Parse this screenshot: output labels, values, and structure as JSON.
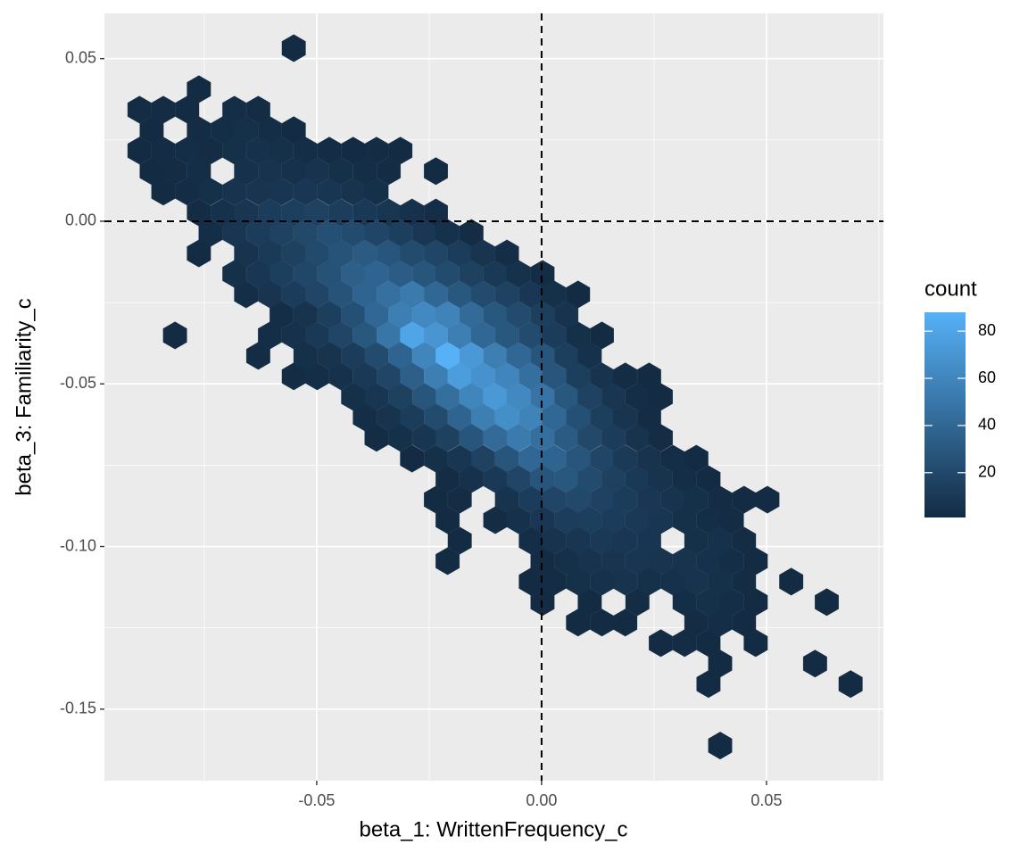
{
  "chart_data": {
    "type": "hexbin",
    "x_label": "beta_1: WrittenFrequency_c",
    "y_label": "beta_3: Familiarity_c",
    "xlim": [
      -0.0972,
      0.076
    ],
    "ylim": [
      -0.172,
      0.0639
    ],
    "xticks": [
      {
        "value": -0.05,
        "label": "-0.05"
      },
      {
        "value": 0,
        "label": "0.00"
      },
      {
        "value": 0.05,
        "label": "0.05"
      }
    ],
    "yticks": [
      {
        "value": -0.15,
        "label": "-0.15"
      },
      {
        "value": -0.1,
        "label": "-0.10"
      },
      {
        "value": -0.05,
        "label": "-0.05"
      },
      {
        "value": 0,
        "label": "0.00"
      },
      {
        "value": 0.05,
        "label": "0.05"
      }
    ],
    "grid": true,
    "vlines": [
      0
    ],
    "hlines": [
      0
    ],
    "colorbar": {
      "title": "count",
      "lim": [
        1,
        88
      ],
      "ticks": [
        20,
        40,
        60,
        80
      ],
      "low": "#132B43",
      "high": "#56B1F7"
    },
    "x": [
      -0.0551,
      -0.0762,
      -0.0894,
      -0.0841,
      -0.0788,
      -0.0683,
      -0.063,
      -0.0867,
      -0.0762,
      -0.0709,
      -0.0657,
      -0.0604,
      -0.0551,
      -0.0894,
      -0.0841,
      -0.0788,
      -0.0736,
      -0.0683,
      -0.063,
      -0.0578,
      -0.0525,
      -0.0472,
      -0.0419,
      -0.0367,
      -0.0314,
      -0.0867,
      -0.0815,
      -0.0762,
      -0.0657,
      -0.0604,
      -0.0551,
      -0.0499,
      -0.0446,
      -0.0393,
      -0.034,
      -0.0235,
      -0.0841,
      -0.0788,
      -0.0736,
      -0.0683,
      -0.063,
      -0.0578,
      -0.0525,
      -0.0472,
      -0.0419,
      -0.0367,
      -0.0762,
      -0.0709,
      -0.0657,
      -0.0604,
      -0.0551,
      -0.0499,
      -0.0446,
      -0.0393,
      -0.034,
      -0.0288,
      -0.0235,
      -0.0736,
      -0.0683,
      -0.063,
      -0.0578,
      -0.0525,
      -0.0472,
      -0.0419,
      -0.0367,
      -0.0314,
      -0.0261,
      -0.0209,
      -0.0156,
      -0.0762,
      -0.0657,
      -0.0604,
      -0.0551,
      -0.0499,
      -0.0446,
      -0.0393,
      -0.034,
      -0.0288,
      -0.0235,
      -0.0182,
      -0.013,
      -0.0077,
      -0.0683,
      -0.063,
      -0.0578,
      -0.0525,
      -0.0472,
      -0.0419,
      -0.0367,
      -0.0314,
      -0.0261,
      -0.0209,
      -0.0156,
      -0.0103,
      -0.0051,
      0.0002,
      -0.0657,
      -0.0604,
      -0.0551,
      -0.0499,
      -0.0446,
      -0.0393,
      -0.034,
      -0.0288,
      -0.0235,
      -0.0182,
      -0.013,
      -0.0077,
      -0.0024,
      0.0028,
      0.0081,
      -0.0578,
      -0.0525,
      -0.0472,
      -0.0419,
      -0.0367,
      -0.0314,
      -0.0261,
      -0.0209,
      -0.0156,
      -0.0103,
      -0.0051,
      0.0002,
      0.0055,
      -0.0815,
      -0.0604,
      -0.0551,
      -0.0499,
      -0.0446,
      -0.0393,
      -0.034,
      -0.0288,
      -0.0235,
      -0.0182,
      -0.013,
      -0.0077,
      -0.0024,
      0.0028,
      0.0081,
      0.0134,
      -0.063,
      -0.0525,
      -0.0472,
      -0.0419,
      -0.0367,
      -0.0314,
      -0.0261,
      -0.0209,
      -0.0156,
      -0.0103,
      -0.0051,
      0.0002,
      0.0055,
      0.0107,
      -0.0551,
      -0.0499,
      -0.0446,
      -0.0393,
      -0.034,
      -0.0288,
      -0.0235,
      -0.0182,
      -0.013,
      -0.0077,
      -0.0024,
      0.0028,
      0.0081,
      0.0134,
      0.0186,
      0.0239,
      -0.0419,
      -0.0367,
      -0.0314,
      -0.0261,
      -0.0209,
      -0.0156,
      -0.0103,
      -0.0051,
      0.0002,
      0.0055,
      0.0107,
      0.016,
      0.0213,
      0.0265,
      -0.0393,
      -0.034,
      -0.0288,
      -0.0235,
      -0.0182,
      -0.013,
      -0.0077,
      -0.0024,
      0.0028,
      0.0081,
      0.0134,
      0.0186,
      0.0239,
      -0.0367,
      -0.0314,
      -0.0261,
      -0.0209,
      -0.0156,
      -0.0103,
      -0.0051,
      0.0002,
      0.0055,
      0.0107,
      0.016,
      0.0213,
      0.0265,
      -0.0288,
      -0.0235,
      -0.0182,
      -0.013,
      -0.0077,
      -0.0024,
      0.0028,
      0.0081,
      0.0134,
      0.0186,
      0.0239,
      0.0292,
      0.0344,
      -0.0209,
      -0.0156,
      -0.0103,
      -0.0051,
      0.0002,
      0.0055,
      0.0107,
      0.016,
      0.0213,
      0.0265,
      0.0318,
      0.0371,
      -0.0235,
      -0.0182,
      -0.0077,
      -0.0024,
      0.0028,
      0.0081,
      0.0134,
      0.0186,
      0.0239,
      0.0292,
      0.0344,
      0.0397,
      0.045,
      0.0502,
      -0.0209,
      -0.0103,
      -0.0051,
      0.0002,
      0.0055,
      0.0107,
      0.016,
      0.0213,
      0.0265,
      0.0318,
      0.0371,
      0.0423,
      -0.0182,
      -0.0024,
      0.0028,
      0.0081,
      0.0134,
      0.0186,
      0.0239,
      0.0344,
      0.0397,
      0.045,
      -0.0209,
      0.0002,
      0.0055,
      0.0107,
      0.016,
      0.0213,
      0.0265,
      0.0318,
      0.0371,
      0.0423,
      0.0476,
      -0.0024,
      0.0028,
      0.0081,
      0.0134,
      0.0186,
      0.0239,
      0.0292,
      0.0344,
      0.0397,
      0.045,
      0.0555,
      0.0002,
      0.0107,
      0.0213,
      0.0318,
      0.0371,
      0.0423,
      0.0476,
      0.0634,
      0.0081,
      0.0134,
      0.0186,
      0.0344,
      0.0397,
      0.045,
      0.0265,
      0.0318,
      0.0371,
      0.0476,
      0.0397,
      0.0608,
      0.0371,
      0.0687,
      0.0397
    ],
    "y": [
      0.0532,
      0.0406,
      0.0343,
      0.0343,
      0.0343,
      0.0343,
      0.0343,
      0.028,
      0.028,
      0.028,
      0.028,
      0.028,
      0.028,
      0.0217,
      0.0217,
      0.0217,
      0.0217,
      0.0217,
      0.0217,
      0.0217,
      0.0217,
      0.0217,
      0.0217,
      0.0217,
      0.0217,
      0.0154,
      0.0154,
      0.0154,
      0.0154,
      0.0154,
      0.0154,
      0.0154,
      0.0154,
      0.0154,
      0.0154,
      0.0154,
      0.0091,
      0.0091,
      0.0091,
      0.0091,
      0.0091,
      0.0091,
      0.0091,
      0.0091,
      0.0091,
      0.0091,
      0.0027,
      0.0027,
      0.0027,
      0.0027,
      0.0027,
      0.0027,
      0.0027,
      0.0027,
      0.0027,
      0.0027,
      0.0027,
      -0.0036,
      -0.0036,
      -0.0036,
      -0.0036,
      -0.0036,
      -0.0036,
      -0.0036,
      -0.0036,
      -0.0036,
      -0.0036,
      -0.0036,
      -0.0036,
      -0.0099,
      -0.0099,
      -0.0099,
      -0.0099,
      -0.0099,
      -0.0099,
      -0.0099,
      -0.0099,
      -0.0099,
      -0.0099,
      -0.0099,
      -0.0099,
      -0.0099,
      -0.0162,
      -0.0162,
      -0.0162,
      -0.0162,
      -0.0162,
      -0.0162,
      -0.0162,
      -0.0162,
      -0.0162,
      -0.0162,
      -0.0162,
      -0.0162,
      -0.0162,
      -0.0162,
      -0.0225,
      -0.0225,
      -0.0225,
      -0.0225,
      -0.0225,
      -0.0225,
      -0.0225,
      -0.0225,
      -0.0225,
      -0.0225,
      -0.0225,
      -0.0225,
      -0.0225,
      -0.0225,
      -0.0225,
      -0.0288,
      -0.0288,
      -0.0288,
      -0.0288,
      -0.0288,
      -0.0288,
      -0.0288,
      -0.0288,
      -0.0288,
      -0.0288,
      -0.0288,
      -0.0288,
      -0.0288,
      -0.0351,
      -0.0351,
      -0.0351,
      -0.0351,
      -0.0351,
      -0.0351,
      -0.0351,
      -0.0351,
      -0.0351,
      -0.0351,
      -0.0351,
      -0.0351,
      -0.0351,
      -0.0351,
      -0.0351,
      -0.0351,
      -0.0414,
      -0.0414,
      -0.0414,
      -0.0414,
      -0.0414,
      -0.0414,
      -0.0414,
      -0.0414,
      -0.0414,
      -0.0414,
      -0.0414,
      -0.0414,
      -0.0414,
      -0.0414,
      -0.0477,
      -0.0477,
      -0.0477,
      -0.0477,
      -0.0477,
      -0.0477,
      -0.0477,
      -0.0477,
      -0.0477,
      -0.0477,
      -0.0477,
      -0.0477,
      -0.0477,
      -0.0477,
      -0.0477,
      -0.0477,
      -0.054,
      -0.054,
      -0.054,
      -0.054,
      -0.054,
      -0.054,
      -0.054,
      -0.054,
      -0.054,
      -0.054,
      -0.054,
      -0.054,
      -0.054,
      -0.054,
      -0.0603,
      -0.0603,
      -0.0603,
      -0.0603,
      -0.0603,
      -0.0603,
      -0.0603,
      -0.0603,
      -0.0603,
      -0.0603,
      -0.0603,
      -0.0603,
      -0.0603,
      -0.0666,
      -0.0666,
      -0.0666,
      -0.0666,
      -0.0666,
      -0.0666,
      -0.0666,
      -0.0666,
      -0.0666,
      -0.0666,
      -0.0666,
      -0.0666,
      -0.0666,
      -0.073,
      -0.073,
      -0.073,
      -0.073,
      -0.073,
      -0.073,
      -0.073,
      -0.073,
      -0.073,
      -0.073,
      -0.073,
      -0.073,
      -0.073,
      -0.0793,
      -0.0793,
      -0.0793,
      -0.0793,
      -0.0793,
      -0.0793,
      -0.0793,
      -0.0793,
      -0.0793,
      -0.0793,
      -0.0793,
      -0.0793,
      -0.0856,
      -0.0856,
      -0.0856,
      -0.0856,
      -0.0856,
      -0.0856,
      -0.0856,
      -0.0856,
      -0.0856,
      -0.0856,
      -0.0856,
      -0.0856,
      -0.0856,
      -0.0856,
      -0.0919,
      -0.0919,
      -0.0919,
      -0.0919,
      -0.0919,
      -0.0919,
      -0.0919,
      -0.0919,
      -0.0919,
      -0.0919,
      -0.0919,
      -0.0919,
      -0.0982,
      -0.0982,
      -0.0982,
      -0.0982,
      -0.0982,
      -0.0982,
      -0.0982,
      -0.0982,
      -0.0982,
      -0.0982,
      -0.1045,
      -0.1045,
      -0.1045,
      -0.1045,
      -0.1045,
      -0.1045,
      -0.1045,
      -0.1045,
      -0.1045,
      -0.1045,
      -0.1045,
      -0.1108,
      -0.1108,
      -0.1108,
      -0.1108,
      -0.1108,
      -0.1108,
      -0.1108,
      -0.1108,
      -0.1108,
      -0.1108,
      -0.1108,
      -0.1171,
      -0.1171,
      -0.1171,
      -0.1171,
      -0.1171,
      -0.1171,
      -0.1171,
      -0.1171,
      -0.1234,
      -0.1234,
      -0.1234,
      -0.1234,
      -0.1234,
      -0.1234,
      -0.1297,
      -0.1297,
      -0.1297,
      -0.1297,
      -0.136,
      -0.136,
      -0.1423,
      -0.1423,
      -0.1612
    ],
    "values": [
      1,
      1,
      2,
      2,
      1,
      3,
      2,
      1,
      2,
      3,
      4,
      3,
      1,
      1,
      2,
      3,
      2,
      4,
      5,
      4,
      3,
      2,
      1,
      2,
      1,
      1,
      2,
      3,
      5,
      6,
      5,
      6,
      4,
      3,
      2,
      1,
      1,
      2,
      4,
      6,
      7,
      8,
      9,
      8,
      6,
      4,
      2,
      5,
      8,
      12,
      14,
      16,
      13,
      10,
      8,
      5,
      3,
      3,
      8,
      12,
      16,
      20,
      25,
      22,
      18,
      14,
      9,
      5,
      2,
      1,
      6,
      11,
      15,
      21,
      27,
      32,
      28,
      22,
      18,
      12,
      7,
      3,
      4,
      9,
      14,
      19,
      26,
      35,
      38,
      33,
      28,
      22,
      15,
      10,
      5,
      2,
      3,
      7,
      12,
      18,
      27,
      38,
      46,
      52,
      40,
      30,
      22,
      16,
      9,
      4,
      1,
      3,
      6,
      14,
      25,
      40,
      55,
      62,
      58,
      42,
      30,
      22,
      14,
      6,
      1,
      3,
      5,
      10,
      18,
      30,
      50,
      80,
      70,
      55,
      40,
      30,
      22,
      12,
      4,
      1,
      2,
      4,
      6,
      12,
      22,
      38,
      60,
      88,
      72,
      55,
      40,
      28,
      14,
      5,
      2,
      3,
      5,
      10,
      18,
      35,
      55,
      75,
      68,
      60,
      45,
      28,
      14,
      6,
      2,
      1,
      4,
      8,
      15,
      28,
      45,
      60,
      72,
      62,
      48,
      30,
      16,
      8,
      3,
      1,
      3,
      6,
      12,
      22,
      38,
      55,
      66,
      58,
      40,
      25,
      14,
      7,
      2,
      2,
      4,
      8,
      15,
      28,
      42,
      52,
      45,
      32,
      20,
      12,
      6,
      2,
      1,
      4,
      8,
      16,
      28,
      40,
      38,
      28,
      18,
      11,
      6,
      3,
      1,
      2,
      5,
      10,
      18,
      28,
      30,
      22,
      15,
      10,
      6,
      3,
      1,
      1,
      2,
      6,
      12,
      18,
      20,
      16,
      12,
      9,
      6,
      4,
      2,
      1,
      1,
      1,
      2,
      5,
      9,
      13,
      14,
      12,
      10,
      8,
      4,
      3,
      2,
      1,
      3,
      6,
      8,
      10,
      9,
      8,
      4,
      5,
      2,
      1,
      2,
      4,
      6,
      7,
      8,
      7,
      6,
      5,
      3,
      1,
      1,
      2,
      4,
      5,
      6,
      4,
      5,
      6,
      4,
      2,
      1,
      1,
      1,
      2,
      3,
      4,
      3,
      1,
      1,
      1,
      1,
      1,
      2,
      3,
      1,
      1,
      2,
      1,
      1,
      1,
      1,
      1,
      1,
      1
    ]
  }
}
